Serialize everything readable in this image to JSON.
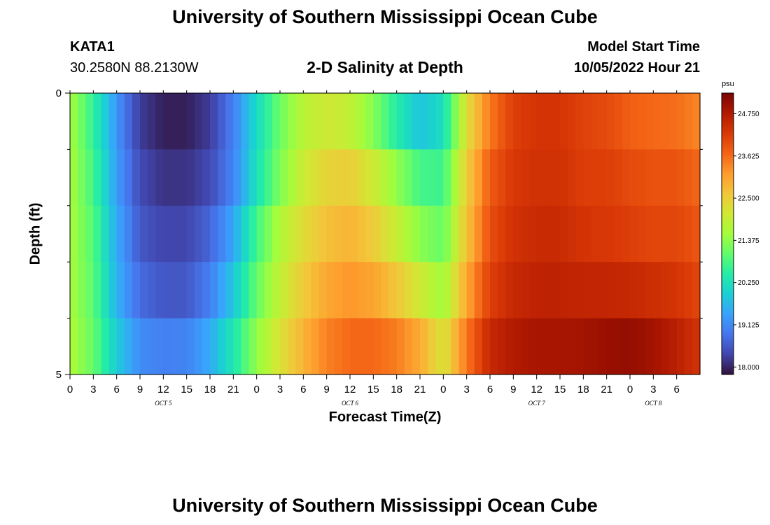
{
  "header": {
    "title": "University of Southern Mississippi Ocean Cube",
    "station_id": "KATA1",
    "coordinates": "30.2580N  88.2130W",
    "plot_title": "2-D Salinity at Depth",
    "start_time_label": "Model Start Time",
    "start_time_value": "10/05/2022 Hour 21"
  },
  "footer": {
    "title": "University of Southern Mississippi Ocean Cube"
  },
  "colors": {
    "colormap": [
      "#30123b",
      "#4145ab",
      "#4675ed",
      "#39a2fc",
      "#1bcfd4",
      "#24eca6",
      "#61fc6c",
      "#a4fc3b",
      "#d1e834",
      "#f3c63a",
      "#fe9b2d",
      "#f36315",
      "#d93806",
      "#b11901",
      "#7a0402"
    ]
  },
  "chart_data": {
    "type": "heatmap",
    "title": "2-D Salinity at Depth",
    "xlabel": "Forecast Time(Z)",
    "ylabel": "Depth (ft)",
    "colorbar_unit": "psu",
    "colorbar_ticks": [
      18.0,
      19.125,
      20.25,
      21.375,
      22.5,
      23.625,
      24.75
    ],
    "colorbar_tick_labels": [
      "18.000",
      "19.125",
      "20.250",
      "21.375",
      "22.500",
      "23.625",
      "24.750"
    ],
    "value_range": [
      17.8,
      25.3
    ],
    "x_range_hours": [
      0,
      81
    ],
    "x_tick_step_hours": 3,
    "x_tick_labels": [
      "0",
      "3",
      "6",
      "9",
      "12",
      "15",
      "18",
      "21",
      "0",
      "3",
      "6",
      "9",
      "12",
      "15",
      "18",
      "21",
      "0",
      "3",
      "6",
      "9",
      "12",
      "15",
      "18",
      "21",
      "0",
      "3",
      "6"
    ],
    "date_labels": [
      {
        "hour": 12,
        "label": "OCT 5"
      },
      {
        "hour": 36,
        "label": "OCT 6"
      },
      {
        "hour": 60,
        "label": "OCT 7"
      },
      {
        "hour": 75,
        "label": "OCT 8"
      }
    ],
    "y_range": [
      0,
      5
    ],
    "y_tick_labels": [
      {
        "value": 0,
        "label": "0"
      },
      {
        "value": 5,
        "label": "5"
      }
    ],
    "y_minor_ticks": [
      1,
      2,
      3,
      4
    ],
    "depth_layers": 5,
    "series": [
      {
        "values": [
          21.6,
          20.6,
          19.3,
          18.2,
          17.9,
          17.9,
          18.3,
          19.2,
          20.4,
          21.3,
          21.8,
          21.9,
          21.5,
          20.8,
          19.8,
          19.2,
          19.9,
          22.0,
          23.3,
          24.1,
          24.3,
          24.3,
          24.1,
          23.9,
          23.6,
          23.5,
          23.4,
          23.2
        ]
      },
      {
        "values": [
          21.6,
          20.6,
          19.2,
          18.3,
          18.0,
          18.0,
          18.2,
          18.8,
          19.9,
          20.9,
          21.8,
          22.2,
          22.3,
          21.8,
          21.1,
          20.4,
          20.5,
          22.5,
          23.7,
          24.2,
          24.3,
          24.3,
          24.1,
          24.1,
          23.9,
          23.8,
          23.8,
          23.5
        ]
      },
      {
        "values": [
          21.6,
          20.9,
          19.5,
          18.5,
          18.3,
          18.3,
          18.6,
          19.3,
          20.6,
          21.6,
          22.2,
          22.6,
          22.7,
          22.3,
          21.7,
          21.1,
          20.9,
          22.5,
          23.9,
          24.3,
          24.4,
          24.4,
          24.2,
          24.2,
          24.1,
          24.0,
          24.0,
          23.8
        ]
      },
      {
        "values": [
          21.6,
          20.9,
          19.5,
          18.6,
          18.4,
          18.4,
          18.8,
          19.6,
          20.9,
          21.8,
          22.4,
          22.8,
          23.0,
          22.8,
          22.2,
          21.6,
          21.2,
          22.8,
          24.0,
          24.4,
          24.5,
          24.5,
          24.4,
          24.3,
          24.2,
          24.1,
          24.1,
          23.9
        ]
      },
      {
        "values": [
          21.6,
          21.0,
          19.7,
          18.9,
          18.7,
          18.7,
          19.2,
          20.1,
          21.2,
          22.0,
          22.7,
          23.2,
          23.4,
          23.3,
          23.0,
          22.5,
          21.8,
          23.2,
          24.3,
          24.6,
          24.7,
          24.7,
          24.7,
          24.8,
          24.8,
          24.7,
          24.5,
          24.2
        ]
      },
      {
        "values": [
          21.7,
          21.1,
          20.1,
          19.4,
          19.3,
          19.4,
          19.8,
          20.6,
          21.6,
          22.4,
          23.0,
          23.6,
          23.9,
          24.0,
          23.9,
          23.4,
          22.5,
          23.8,
          24.7,
          24.9,
          25.0,
          25.0,
          25.1,
          25.2,
          25.3,
          25.1,
          24.8,
          24.4
        ]
      }
    ]
  }
}
